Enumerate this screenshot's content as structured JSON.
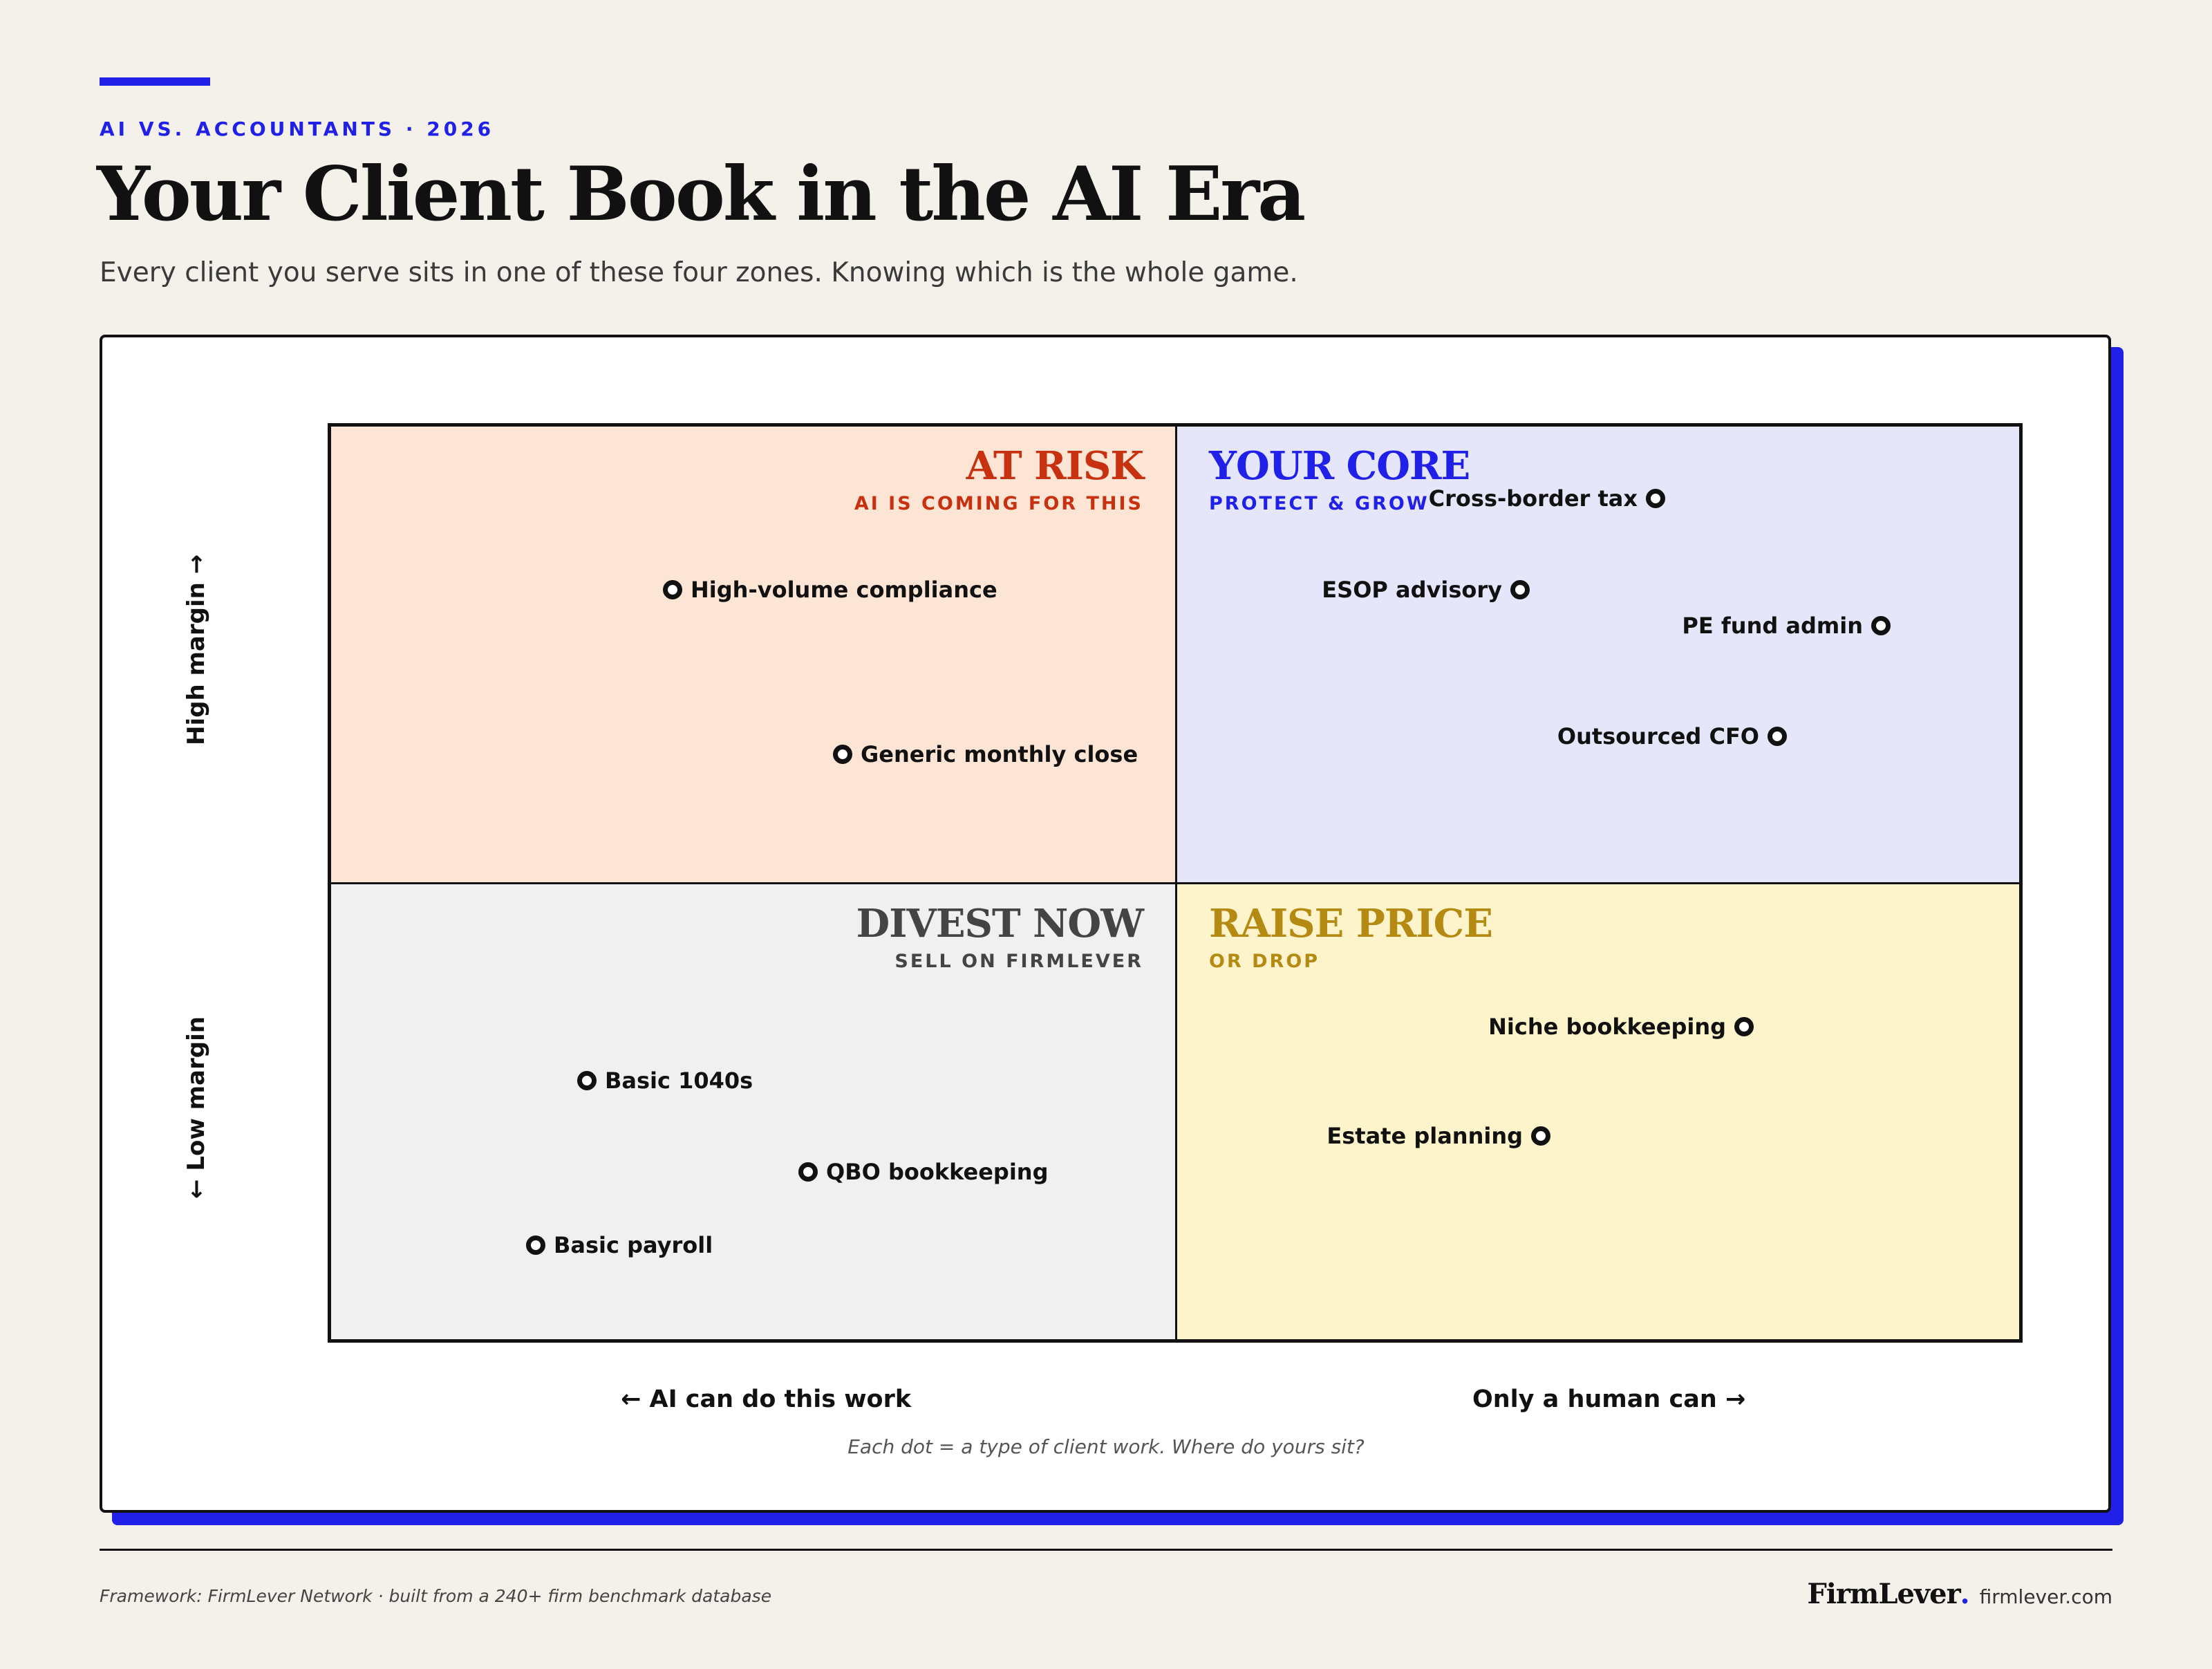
{
  "header": {
    "kicker": "AI VS. ACCOUNTANTS · 2026",
    "title": "Your Client Book in the AI Era",
    "subtitle": "Every client you serve sits in one of these four zones. Knowing which is the whole game."
  },
  "axes": {
    "y_high": "High margin →",
    "y_low": "← Low margin",
    "x_left": "← AI can do this work",
    "x_right": "Only a human can →"
  },
  "quadrants": {
    "at_risk": {
      "title": "AT RISK",
      "subtitle": "AI IS COMING FOR THIS",
      "color": "#c8310f",
      "fill": "#fde5d6"
    },
    "your_core": {
      "title": "YOUR CORE",
      "subtitle": "PROTECT & GROW",
      "color": "#2020e8",
      "fill": "#e6e6fb"
    },
    "divest_now": {
      "title": "DIVEST NOW",
      "subtitle": "SELL ON FIRMLEVER",
      "color": "#444444",
      "fill": "#f0f0f0"
    },
    "raise_price": {
      "title": "RAISE PRICE",
      "subtitle": "OR DROP",
      "color": "#b58a12",
      "fill": "#fdf4cc"
    }
  },
  "items": {
    "high_volume_compliance": "High-volume compliance",
    "generic_monthly_close": "Generic monthly close",
    "cross_border_tax": "Cross-border tax",
    "esop_advisory": "ESOP advisory",
    "pe_fund_admin": "PE fund admin",
    "outsourced_cfo": "Outsourced CFO",
    "basic_1040s": "Basic 1040s",
    "qbo_bookkeeping": "QBO bookkeeping",
    "basic_payroll": "Basic payroll",
    "niche_bookkeeping": "Niche bookkeeping",
    "estate_planning": "Estate planning"
  },
  "note": "Each dot = a type of client work. Where do yours sit?",
  "footer": {
    "credit": "Framework: FirmLever Network · built from a 240+ firm benchmark database",
    "brand": "FirmLever",
    "brand_dot": ".",
    "site": "firmlever.com"
  },
  "colors": {
    "accent": "#2020e8",
    "background": "#f4f1ea"
  }
}
